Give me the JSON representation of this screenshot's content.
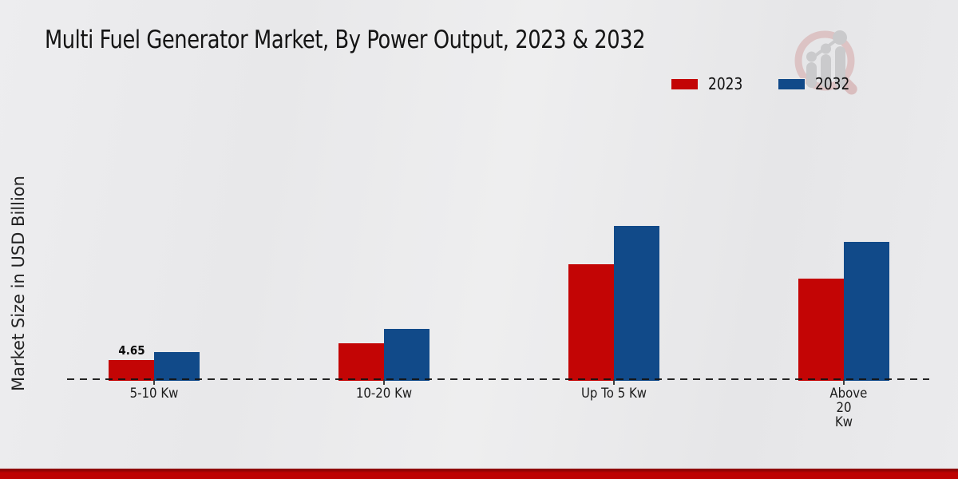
{
  "header": {
    "title": "Multi Fuel Generator Market, By Power Output, 2023 & 2032"
  },
  "legend": {
    "items": [
      {
        "label": "2023",
        "color": "#c30505"
      },
      {
        "label": "2032",
        "color": "#114a89"
      }
    ]
  },
  "watermark": {
    "icon": "magnifier-bar-chart-logo"
  },
  "footer": {
    "accent_color": "#bd0303"
  },
  "chart_data": {
    "type": "bar",
    "title": "Multi Fuel Generator Market, By Power Output, 2023 & 2032",
    "xlabel": "",
    "ylabel": "Market Size in USD Billion",
    "categories": [
      "5-10 Kw",
      "10-20 Kw",
      "Up To 5 Kw",
      "Above 20 Kw"
    ],
    "series": [
      {
        "name": "2023",
        "color": "#c30505",
        "values": [
          4.65,
          8.7,
          27.9,
          24.4
        ]
      },
      {
        "name": "2032",
        "color": "#114a89",
        "values": [
          6.6,
          12.2,
          37.2,
          33.3
        ]
      }
    ],
    "data_labels": [
      {
        "series": "2023",
        "category": "5-10 Kw",
        "text": "4.65"
      }
    ],
    "ylim": [
      0,
      40
    ],
    "grid": false,
    "y_axis_ticks_visible": false,
    "baseline_style": "dashed",
    "legend_position": "top-right"
  }
}
